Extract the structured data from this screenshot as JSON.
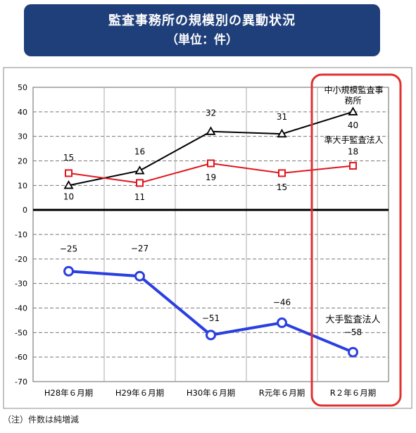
{
  "header": {
    "title": "監査事務所の規模別の異動状況",
    "subtitle": "（単位：件）"
  },
  "note": "（注）件数は純増減",
  "colors": {
    "header_bg": "#1f3f7a",
    "highlight": "#e03030"
  },
  "chart_data": {
    "type": "line",
    "title": "監査事務所の規模別の異動状況",
    "subtitle": "（単位：件）",
    "categories": [
      "H28年６月期",
      "H29年６月期",
      "H30年６月期",
      "R元年６月期",
      "R２年６月期"
    ],
    "ylim": [
      -70,
      50
    ],
    "yticks": [
      50,
      40,
      30,
      20,
      10,
      0,
      -10,
      -20,
      -30,
      -40,
      -50,
      -60,
      -70
    ],
    "grid": true,
    "series": [
      {
        "name": "中小規模監査事務所",
        "values": [
          10,
          16,
          32,
          31,
          40
        ],
        "color": "#000000",
        "marker": "triangle",
        "data_labels": [
          "10",
          "16",
          "32",
          "31",
          "40"
        ]
      },
      {
        "name": "準大手監査法人",
        "values": [
          15,
          11,
          19,
          15,
          18
        ],
        "color": "#e0161d",
        "marker": "square",
        "data_labels": [
          "15",
          "11",
          "19",
          "15",
          "18"
        ]
      },
      {
        "name": "大手監査法人",
        "values": [
          -25,
          -27,
          -51,
          -46,
          -58
        ],
        "color": "#2b3fe0",
        "marker": "circle",
        "data_labels": [
          "−25",
          "−27",
          "−51",
          "−46",
          "−58"
        ]
      }
    ],
    "series_labels": {
      "small_line1": "中小規模監査事",
      "small_line2": "務所",
      "mid": "準大手監査法人",
      "big": "大手監査法人"
    }
  }
}
